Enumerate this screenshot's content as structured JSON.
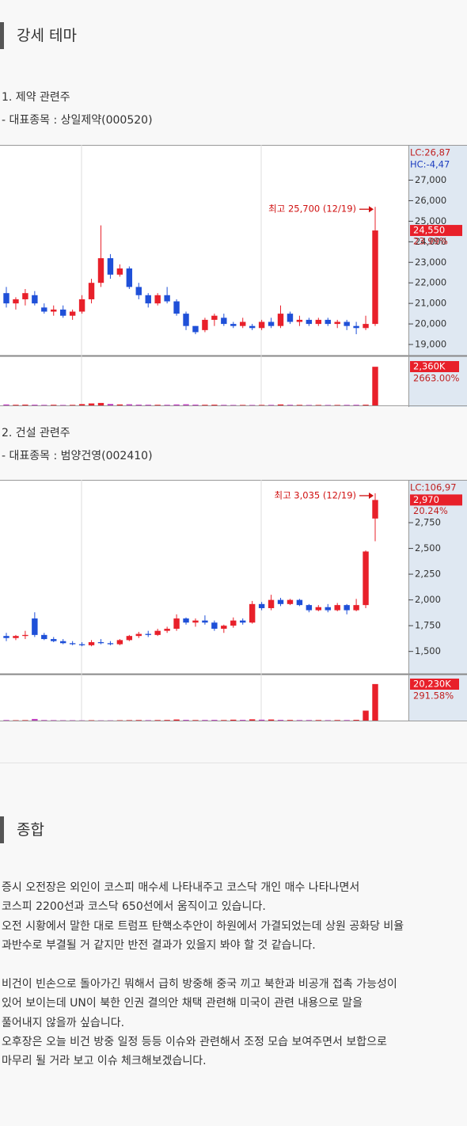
{
  "section1": {
    "title": "강세 테마"
  },
  "items": [
    {
      "heading": "1. 제약 관련주",
      "stock": "- 대표종목 : 상일제약(000520)",
      "chart": {
        "type": "candlestick",
        "up_color": "#e8202a",
        "down_color": "#1f50d8",
        "ylim": [
          18500,
          28600
        ],
        "yticks": [
          {
            "value": 27000,
            "label": "27,000"
          },
          {
            "value": 26000,
            "label": "26,000"
          },
          {
            "value": 25000,
            "label": "25,000"
          },
          {
            "value": 24000,
            "label": "24,000"
          },
          {
            "value": 23000,
            "label": "23,000"
          },
          {
            "value": 22000,
            "label": "22,000"
          },
          {
            "value": 21000,
            "label": "21,000"
          },
          {
            "value": 20000,
            "label": "20,000"
          },
          {
            "value": 19000,
            "label": "19,000"
          }
        ],
        "lc": "LC:26,87",
        "hc": "HC:-4,47",
        "last_label": "24,550",
        "last_pct": "23.99%",
        "annotation": "최고 25,700 (12/19)",
        "volume_label": "2,360K",
        "volume_pct": "2663.00%",
        "vlim": [
          0,
          2900
        ],
        "candles": [
          [
            21500,
            21800,
            20800,
            21000
          ],
          [
            21000,
            21300,
            20700,
            21200
          ],
          [
            21200,
            21700,
            20900,
            21500
          ],
          [
            21400,
            21600,
            20900,
            21000
          ],
          [
            20800,
            21000,
            20500,
            20600
          ],
          [
            20600,
            20900,
            20400,
            20700
          ],
          [
            20700,
            20900,
            20300,
            20400
          ],
          [
            20400,
            20700,
            20200,
            20600
          ],
          [
            20600,
            21400,
            20500,
            21200
          ],
          [
            21200,
            22200,
            21000,
            22000
          ],
          [
            22000,
            24800,
            21800,
            23200
          ],
          [
            23200,
            23400,
            22200,
            22400
          ],
          [
            22400,
            22900,
            22300,
            22700
          ],
          [
            22700,
            22800,
            21700,
            21800
          ],
          [
            21800,
            22000,
            21200,
            21400
          ],
          [
            21400,
            21500,
            20800,
            21000
          ],
          [
            21000,
            21500,
            20900,
            21400
          ],
          [
            21400,
            21800,
            21000,
            21100
          ],
          [
            21100,
            21200,
            20400,
            20500
          ],
          [
            20500,
            20600,
            19700,
            19900
          ],
          [
            19900,
            19900,
            19500,
            19600
          ],
          [
            19700,
            20300,
            19600,
            20200
          ],
          [
            20200,
            20500,
            19900,
            20400
          ],
          [
            20300,
            20500,
            19900,
            20000
          ],
          [
            20000,
            20100,
            19800,
            19900
          ],
          [
            19900,
            20300,
            19800,
            20100
          ],
          [
            19900,
            20000,
            19700,
            19800
          ],
          [
            19800,
            20200,
            19700,
            20100
          ],
          [
            20100,
            20300,
            19800,
            19900
          ],
          [
            19900,
            20900,
            19800,
            20500
          ],
          [
            20500,
            20600,
            20000,
            20100
          ],
          [
            20100,
            20400,
            19900,
            20200
          ],
          [
            20200,
            20300,
            19900,
            20000
          ],
          [
            20000,
            20300,
            19900,
            20200
          ],
          [
            20200,
            20300,
            19900,
            20000
          ],
          [
            20000,
            20200,
            19800,
            20100
          ],
          [
            20100,
            20200,
            19700,
            19900
          ],
          [
            19900,
            20100,
            19500,
            19800
          ],
          [
            19800,
            20400,
            19700,
            20000
          ],
          [
            20000,
            25700,
            19900,
            24550
          ]
        ],
        "volumes": [
          60,
          40,
          50,
          45,
          35,
          40,
          30,
          35,
          80,
          120,
          150,
          90,
          60,
          70,
          50,
          45,
          40,
          40,
          60,
          70,
          50,
          40,
          45,
          35,
          30,
          30,
          30,
          30,
          35,
          60,
          40,
          35,
          30,
          30,
          30,
          30,
          35,
          40,
          45,
          2360
        ]
      }
    },
    {
      "heading": "2. 건설 관련주",
      "stock": "- 대표종목 : 범양건영(002410)",
      "chart": {
        "type": "candlestick",
        "up_color": "#e8202a",
        "down_color": "#1f50d8",
        "ylim": [
          1290,
          3150
        ],
        "yticks": [
          {
            "value": 2750,
            "label": "2,750"
          },
          {
            "value": 2500,
            "label": "2,500"
          },
          {
            "value": 2250,
            "label": "2,250"
          },
          {
            "value": 2000,
            "label": "2,000"
          },
          {
            "value": 1750,
            "label": "1,750"
          },
          {
            "value": 1500,
            "label": "1,500"
          }
        ],
        "lc": "LC:106,97",
        "last_label": "2,970",
        "last_pct": "20.24%",
        "annotation": "최고 3,035 (12/19)",
        "volume_label": "20,230K",
        "volume_pct": "291.58%",
        "vlim": [
          0,
          25000
        ],
        "candles": [
          [
            1650,
            1680,
            1600,
            1630
          ],
          [
            1630,
            1660,
            1610,
            1650
          ],
          [
            1650,
            1700,
            1620,
            1660
          ],
          [
            1820,
            1880,
            1640,
            1660
          ],
          [
            1660,
            1680,
            1610,
            1620
          ],
          [
            1620,
            1640,
            1590,
            1600
          ],
          [
            1600,
            1620,
            1570,
            1580
          ],
          [
            1580,
            1600,
            1560,
            1570
          ],
          [
            1570,
            1590,
            1550,
            1560
          ],
          [
            1560,
            1610,
            1550,
            1590
          ],
          [
            1590,
            1620,
            1570,
            1580
          ],
          [
            1580,
            1600,
            1560,
            1570
          ],
          [
            1570,
            1620,
            1560,
            1610
          ],
          [
            1610,
            1660,
            1600,
            1650
          ],
          [
            1650,
            1690,
            1630,
            1670
          ],
          [
            1670,
            1700,
            1640,
            1660
          ],
          [
            1660,
            1720,
            1650,
            1700
          ],
          [
            1700,
            1740,
            1680,
            1720
          ],
          [
            1720,
            1860,
            1700,
            1820
          ],
          [
            1820,
            1830,
            1760,
            1780
          ],
          [
            1780,
            1820,
            1740,
            1800
          ],
          [
            1800,
            1850,
            1760,
            1780
          ],
          [
            1780,
            1800,
            1700,
            1720
          ],
          [
            1720,
            1760,
            1680,
            1750
          ],
          [
            1750,
            1830,
            1730,
            1800
          ],
          [
            1800,
            1820,
            1760,
            1780
          ],
          [
            1780,
            1990,
            1770,
            1960
          ],
          [
            1960,
            1980,
            1900,
            1920
          ],
          [
            1920,
            2050,
            1900,
            2000
          ],
          [
            2000,
            2020,
            1940,
            1960
          ],
          [
            1960,
            2010,
            1950,
            2000
          ],
          [
            2000,
            2010,
            1940,
            1950
          ],
          [
            1950,
            1960,
            1880,
            1900
          ],
          [
            1900,
            1950,
            1890,
            1930
          ],
          [
            1930,
            1960,
            1880,
            1900
          ],
          [
            1900,
            1970,
            1890,
            1950
          ],
          [
            1950,
            1960,
            1860,
            1900
          ],
          [
            1900,
            2010,
            1890,
            1950
          ],
          [
            1950,
            2480,
            1920,
            2470
          ],
          [
            2790,
            3035,
            2570,
            2970
          ]
        ],
        "volumes": [
          300,
          200,
          250,
          900,
          300,
          250,
          200,
          200,
          150,
          200,
          150,
          150,
          200,
          250,
          300,
          250,
          300,
          350,
          600,
          400,
          300,
          350,
          400,
          300,
          500,
          400,
          700,
          500,
          600,
          400,
          350,
          300,
          300,
          300,
          250,
          300,
          300,
          400,
          5500,
          20230
        ]
      }
    }
  ],
  "section2": {
    "title": "종합"
  },
  "paragraphs": [
    {
      "lines": [
        "증시 오전장은 외인이 코스피 매수세 나타내주고 코스닥 개인 매수 나타나면서",
        "코스피 2200선과 코스닥 650선에서 움직이고 있습니다.",
        "오전 시황에서 말한 대로 트럼프 탄핵소추안이 하원에서 가결되었는데 상원 공화당 비율",
        "과반수로 부결될 거 같지만 반전 결과가 있을지 봐야 할 것 같습니다."
      ]
    },
    {
      "lines": [
        "비건이 빈손으로 돌아가긴 뭐해서 급히 방중해 중국 끼고 북한과 비공개 접촉 가능성이",
        "있어 보이는데 UN이 북한 인권 결의안 채택 관련해 미국이 관련 내용으로 말을",
        "풀어내지 않을까 싶습니다.",
        "오후장은 오늘 비건 방중 일정 등등 이슈와 관련해서 조정 모습 보여주면서 보합으로",
        "마무리 될 거라 보고 이슈 체크해보겠습니다."
      ]
    }
  ]
}
